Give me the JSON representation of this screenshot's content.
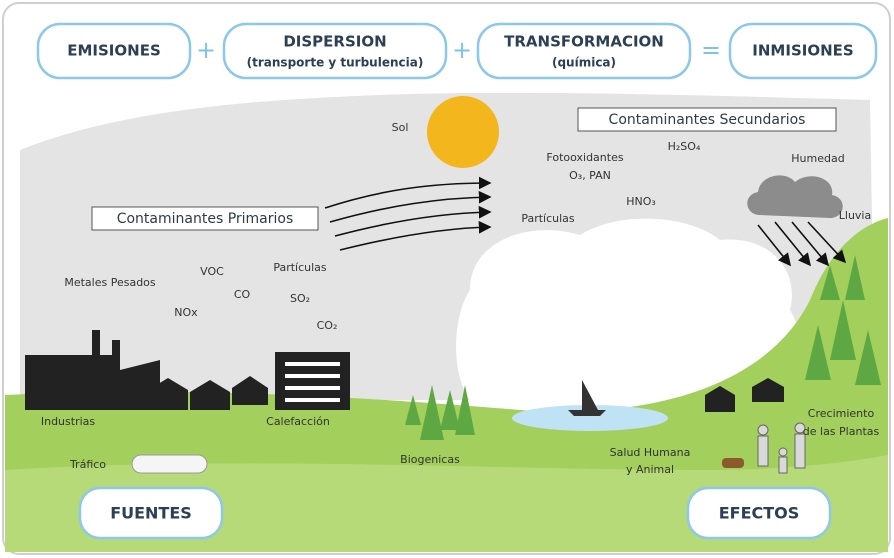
{
  "equation": [
    {
      "title": "EMISIONES"
    },
    "+",
    {
      "title": "DISPERSION",
      "note": "(transporte y turbulencia)"
    },
    "+",
    {
      "title": "TRANSFORMACION",
      "note": "(química)"
    },
    "=",
    {
      "title": "INMISIONES"
    }
  ],
  "labels": {
    "sun": "Sol",
    "secondary_title": "Contaminantes Secundarios",
    "secondary": [
      "Fotooxidantes",
      "O₃, PAN",
      "H₂SO₄",
      "HNO₃",
      "Partículas"
    ],
    "humidity": "Humedad",
    "rain": "Lluvia",
    "primary_title": "Contaminantes Primarios",
    "primary": [
      "Metales Pesados",
      "VOC",
      "CO",
      "NOx",
      "Partículas",
      "SO₂",
      "CO₂"
    ],
    "sources": [
      "Industrias",
      "Calefacción",
      "Tráfico",
      "Biogenicas"
    ],
    "effects": [
      "Salud Humana",
      "y Animal",
      "Crecimiento",
      "de las Plantas"
    ]
  },
  "sections": [
    "FUENTES",
    "EFECTOS"
  ]
}
